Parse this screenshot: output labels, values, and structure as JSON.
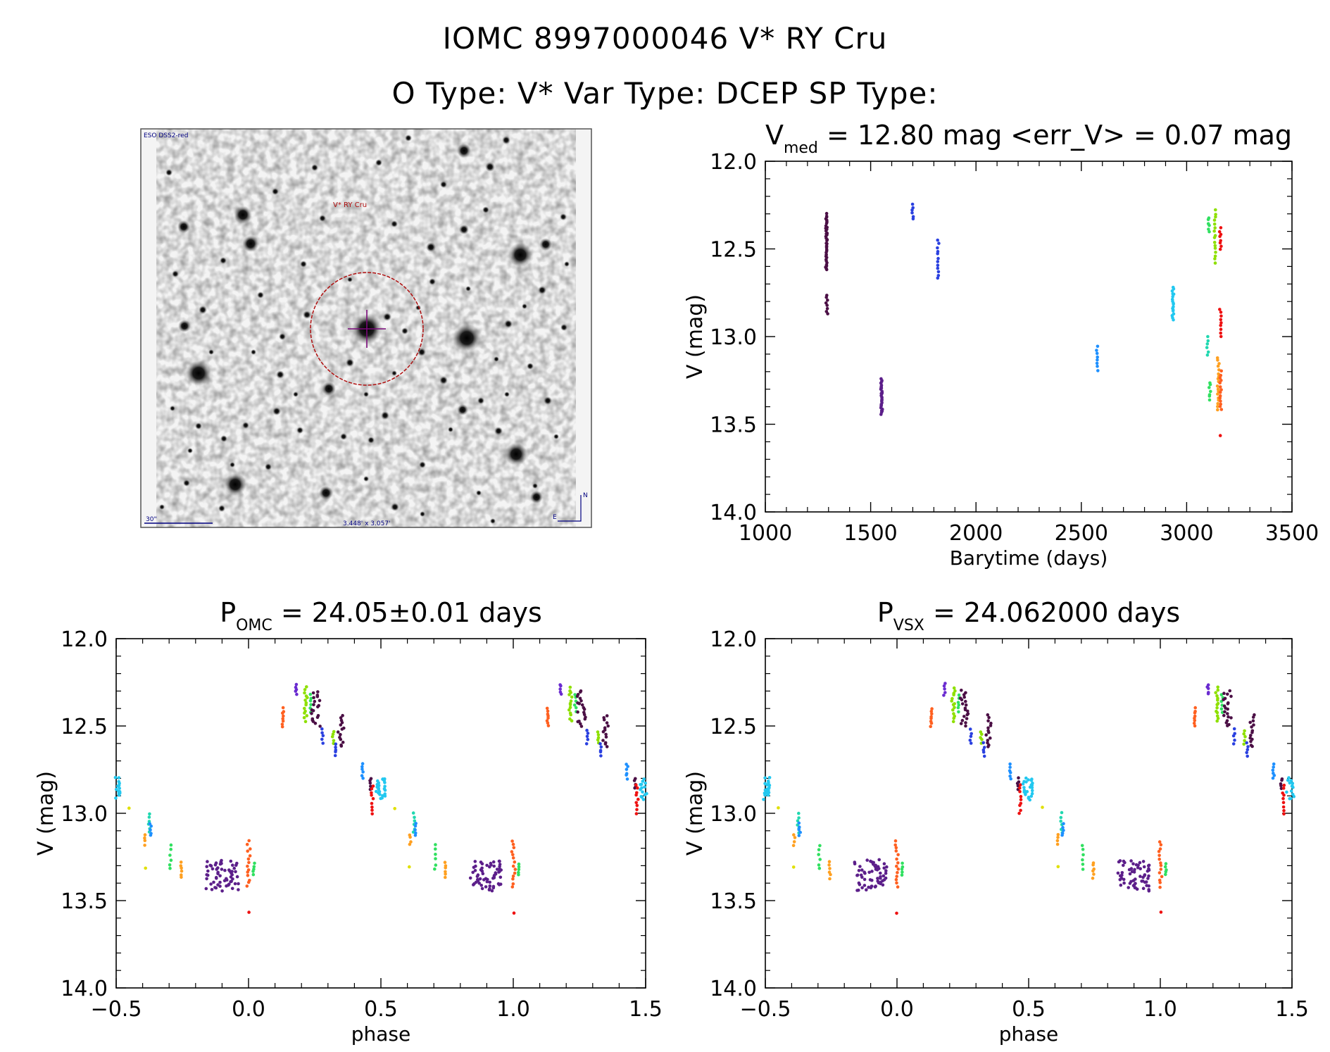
{
  "header": {
    "line1": "IOMC 8997000046   V* RY Cru",
    "line2": "O Type: V*  Var Type: DCEP  SP Type:"
  },
  "image_panel": {
    "survey": "ESO DSS2-red",
    "target": "V* RY Cru",
    "scale": "30\"",
    "fov": "3.448' x 3.057'",
    "compass_north": "N",
    "compass_east": "E"
  },
  "colors": {
    "palette": [
      "#4b0f45",
      "#5c1f8a",
      "#6a2bd0",
      "#2a40e0",
      "#1e90ff",
      "#22c8f0",
      "#20d8b0",
      "#30e060",
      "#8ee000",
      "#e0e000",
      "#ffa020",
      "#ff6020",
      "#ee1111"
    ],
    "circle": "#b01010",
    "crosshair": "#7a0a7a",
    "label": "#000080"
  },
  "chart_data": [
    {
      "type": "scatter",
      "title_main": "V",
      "title_sub": "med",
      "title_rest": " = 12.80 mag <err_V> = 0.07 mag",
      "xlabel": "Barytime (days)",
      "ylabel": "V (mag)",
      "xlim": [
        1000,
        3500
      ],
      "ylim": [
        14.0,
        12.0
      ],
      "xticks": [
        "1000",
        "1500",
        "2000",
        "2500",
        "3000",
        "3500"
      ],
      "yticks": [
        "12.0",
        "12.5",
        "13.0",
        "13.5",
        "14.0"
      ],
      "series": [
        {
          "color": "#4b0f45",
          "x": 1290,
          "y_range": [
            12.3,
            12.62
          ],
          "n": 40
        },
        {
          "color": "#4b0f45",
          "x": 1292,
          "y_range": [
            12.76,
            12.87
          ],
          "n": 8
        },
        {
          "color": "#5c1f8a",
          "x": 1552,
          "y_range": [
            13.24,
            13.44
          ],
          "n": 30
        },
        {
          "color": "#2a40e0",
          "x": 1700,
          "y_range": [
            12.25,
            12.33
          ],
          "n": 6
        },
        {
          "color": "#2a40e0",
          "x": 1820,
          "y_range": [
            12.45,
            12.67
          ],
          "n": 12
        },
        {
          "color": "#1e90ff",
          "x": 2575,
          "y_range": [
            13.06,
            13.19
          ],
          "n": 8
        },
        {
          "color": "#22c8f0",
          "x": 2935,
          "y_range": [
            12.72,
            12.9
          ],
          "n": 18
        },
        {
          "color": "#30e060",
          "x": 3105,
          "y_range": [
            12.32,
            12.4
          ],
          "n": 6
        },
        {
          "color": "#8ee000",
          "x": 3135,
          "y_range": [
            12.28,
            12.58
          ],
          "n": 16
        },
        {
          "color": "#ee1111",
          "x": 3160,
          "y_range": [
            12.38,
            12.5
          ],
          "n": 8
        },
        {
          "color": "#20d8b0",
          "x": 3100,
          "y_range": [
            13.0,
            13.11
          ],
          "n": 6
        },
        {
          "color": "#ee1111",
          "x": 3160,
          "y_range": [
            12.84,
            13.0
          ],
          "n": 9
        },
        {
          "color": "#ffa020",
          "x": 3150,
          "y_range": [
            13.12,
            13.42
          ],
          "n": 18
        },
        {
          "color": "#ff6020",
          "x": 3162,
          "y_range": [
            13.2,
            13.42
          ],
          "n": 14
        },
        {
          "color": "#30e060",
          "x": 3110,
          "y_range": [
            13.26,
            13.36
          ],
          "n": 7
        },
        {
          "color": "#ee1111",
          "x": 3160,
          "y_range": [
            13.55,
            13.58
          ],
          "n": 1
        }
      ]
    },
    {
      "type": "scatter",
      "title_main": "P",
      "title_sub": "OMC",
      "title_rest": " = 24.05±0.01 days",
      "xlabel": "phase",
      "ylabel": "V (mag)",
      "xlim": [
        -0.5,
        1.5
      ],
      "ylim": [
        14.0,
        12.0
      ],
      "xticks": [
        "−0.5",
        "0.0",
        "0.5",
        "1.0",
        "1.5"
      ],
      "yticks": [
        "12.0",
        "12.5",
        "13.0",
        "13.5",
        "14.0"
      ],
      "series": [
        {
          "color": "#5c1f8a",
          "phase": [
            -0.16,
            -0.04
          ],
          "y_range": [
            13.27,
            13.44
          ],
          "n": 60
        },
        {
          "color": "#ff6020",
          "phase": [
            -0.005,
            0.005
          ],
          "y_range": [
            13.16,
            13.42
          ],
          "n": 14
        },
        {
          "color": "#ee1111",
          "phase": [
            0.0,
            0.0
          ],
          "y_range": [
            13.56,
            13.58
          ],
          "n": 1
        },
        {
          "color": "#30e060",
          "phase": [
            0.02,
            0.02
          ],
          "y_range": [
            13.29,
            13.35
          ],
          "n": 5
        },
        {
          "color": "#ff6020",
          "phase": [
            0.13,
            0.13
          ],
          "y_range": [
            12.4,
            12.5
          ],
          "n": 8
        },
        {
          "color": "#6a2bd0",
          "phase": [
            0.18,
            0.18
          ],
          "y_range": [
            12.26,
            12.32
          ],
          "n": 5
        },
        {
          "color": "#8ee000",
          "phase": [
            0.21,
            0.22
          ],
          "y_range": [
            12.28,
            12.47
          ],
          "n": 14
        },
        {
          "color": "#30e060",
          "phase": [
            0.235,
            0.235
          ],
          "y_range": [
            12.32,
            12.42
          ],
          "n": 6
        },
        {
          "color": "#4b0f45",
          "phase": [
            0.24,
            0.27
          ],
          "y_range": [
            12.3,
            12.5
          ],
          "n": 20
        },
        {
          "color": "#2a40e0",
          "phase": [
            0.28,
            0.28
          ],
          "y_range": [
            12.52,
            12.6
          ],
          "n": 5
        },
        {
          "color": "#8ee000",
          "phase": [
            0.32,
            0.32
          ],
          "y_range": [
            12.53,
            12.6
          ],
          "n": 5
        },
        {
          "color": "#2a40e0",
          "phase": [
            0.33,
            0.33
          ],
          "y_range": [
            12.6,
            12.67
          ],
          "n": 5
        },
        {
          "color": "#4b0f45",
          "phase": [
            0.34,
            0.36
          ],
          "y_range": [
            12.44,
            12.62
          ],
          "n": 14
        },
        {
          "color": "#1e90ff",
          "phase": [
            0.43,
            0.43
          ],
          "y_range": [
            12.72,
            12.8
          ],
          "n": 6
        },
        {
          "color": "#4b0f45",
          "phase": [
            0.46,
            0.46
          ],
          "y_range": [
            12.8,
            12.86
          ],
          "n": 5
        },
        {
          "color": "#ee1111",
          "phase": [
            0.465,
            0.47
          ],
          "y_range": [
            12.84,
            13.0
          ],
          "n": 9
        },
        {
          "color": "#22c8f0",
          "phase": [
            0.48,
            0.51
          ],
          "y_range": [
            12.8,
            12.92
          ],
          "n": 16
        },
        {
          "color": "#e0e000",
          "phase": [
            -0.45,
            -0.45
          ],
          "y_range": [
            12.96,
            12.98
          ],
          "n": 1
        },
        {
          "color": "#20d8b0",
          "phase": [
            -0.375,
            -0.375
          ],
          "y_range": [
            13.0,
            13.11
          ],
          "n": 6
        },
        {
          "color": "#1e90ff",
          "phase": [
            -0.37,
            -0.37
          ],
          "y_range": [
            13.06,
            13.13
          ],
          "n": 5
        },
        {
          "color": "#ffa020",
          "phase": [
            -0.39,
            -0.39
          ],
          "y_range": [
            13.12,
            13.18
          ],
          "n": 4
        },
        {
          "color": "#e0e000",
          "phase": [
            -0.39,
            -0.39
          ],
          "y_range": [
            13.3,
            13.32
          ],
          "n": 1
        },
        {
          "color": "#30e060",
          "phase": [
            -0.295,
            -0.295
          ],
          "y_range": [
            13.18,
            13.32
          ],
          "n": 6
        },
        {
          "color": "#ffa020",
          "phase": [
            -0.255,
            -0.255
          ],
          "y_range": [
            13.28,
            13.37
          ],
          "n": 6
        },
        {
          "color": "#22c8f0",
          "phase": [
            -0.49,
            -0.485
          ],
          "y_range": [
            12.8,
            12.9
          ],
          "n": 8
        }
      ]
    },
    {
      "type": "scatter",
      "title_main": "P",
      "title_sub": "VSX",
      "title_rest": " = 24.062000 days",
      "xlabel": "phase",
      "ylabel": "V (mag)",
      "xlim": [
        -0.5,
        1.5
      ],
      "ylim": [
        14.0,
        12.0
      ],
      "xticks": [
        "−0.5",
        "0.0",
        "0.5",
        "1.0",
        "1.5"
      ],
      "yticks": [
        "12.0",
        "12.5",
        "13.0",
        "13.5",
        "14.0"
      ],
      "series_same_as": 1
    }
  ]
}
